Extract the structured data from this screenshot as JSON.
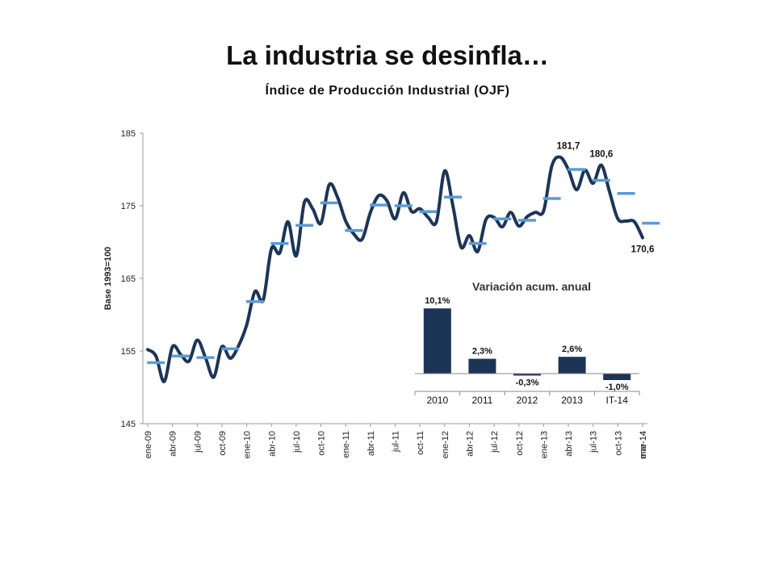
{
  "slide": {
    "title": "La industria se desinfla…",
    "subtitle": "Índice de Producción Industrial (OJF)"
  },
  "chart_data": [
    {
      "type": "line",
      "ylabel": "Base 1993=100",
      "ylim": [
        145,
        185
      ],
      "yticks": [
        145,
        155,
        165,
        175,
        185
      ],
      "x_tick_labels": [
        "ene-09",
        "abr-09",
        "jul-09",
        "oct-09",
        "ene-10",
        "abr-10",
        "jul-10",
        "oct-10",
        "ene-11",
        "abr-11",
        "jul-11",
        "oct-11",
        "ene-12",
        "abr-12",
        "jul-12",
        "oct-12",
        "ene-13",
        "abr-13",
        "jul-13",
        "oct-13",
        "ene-14",
        "mar-14"
      ],
      "series": [
        {
          "values": [
            155.2,
            154.3,
            150.8,
            155.6,
            154.5,
            153.6,
            156.5,
            154.1,
            151.4,
            155.6,
            154.0,
            155.7,
            158.6,
            163.2,
            162.0,
            169.1,
            168.5,
            172.8,
            168.1,
            175.5,
            174.6,
            172.6,
            177.9,
            176.2,
            172.9,
            171.1,
            170.4,
            174.1,
            176.4,
            175.7,
            173.2,
            176.8,
            174.2,
            174.6,
            173.4,
            172.8,
            179.8,
            175.0,
            169.3,
            170.9,
            168.7,
            173.1,
            173.4,
            172.1,
            174.1,
            172.2,
            173.5,
            174.1,
            174.3,
            180.5,
            181.7,
            180.0,
            177.2,
            179.9,
            178.1,
            180.6,
            176.9,
            173.2,
            172.9,
            172.8,
            170.6
          ]
        },
        {
          "values": [
            153.4,
            154.3,
            154.1,
            155.3,
            161.8,
            169.8,
            172.3,
            175.4,
            171.6,
            175.1,
            175.0,
            174.2,
            176.2,
            169.8,
            173.2,
            173.0,
            176.0,
            180.0,
            178.5,
            176.7,
            172.6
          ]
        }
      ],
      "annotations": [
        {
          "label": "181,7",
          "x": "abr-13",
          "y": 181.7
        },
        {
          "label": "180,6",
          "x": "ago-13",
          "y": 180.6
        },
        {
          "label": "170,6",
          "x": "mar-14",
          "y": 170.6
        }
      ]
    },
    {
      "type": "bar",
      "title": "Variación acum. anual",
      "categories": [
        "2010",
        "2011",
        "2012",
        "2013",
        "IT-14"
      ],
      "values": [
        10.1,
        2.3,
        -0.3,
        2.6,
        -1.0
      ],
      "labels": [
        "10,1%",
        "2,3%",
        "-0,3%",
        "2,6%",
        "-1,0%"
      ]
    }
  ],
  "colors": {
    "line": "#1c3557",
    "avg": "#5b9bd5",
    "bar": "#1c3557"
  }
}
